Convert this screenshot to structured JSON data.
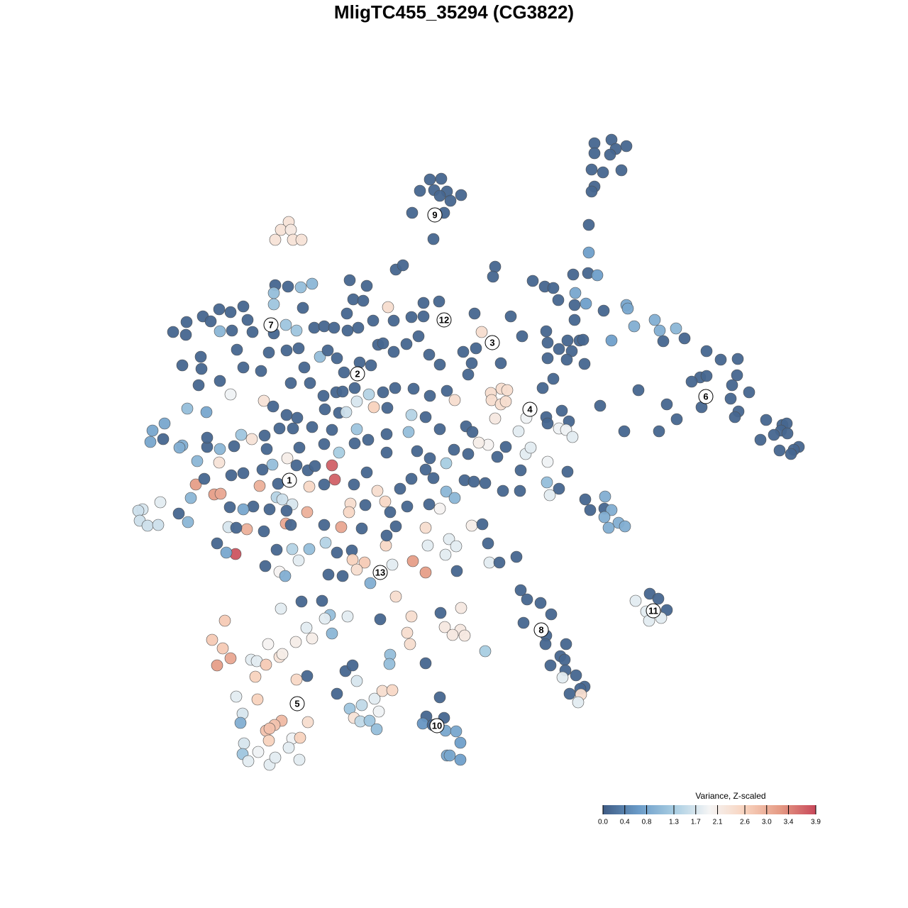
{
  "chart_data": {
    "type": "scatter",
    "title": "MligTC455_35294 (CG3822)",
    "xlim": [
      0,
      1280
    ],
    "ylim": [
      1280,
      0
    ],
    "x": [
      838,
      862,
      868,
      883,
      838,
      860,
      834,
      850,
      876,
      838,
      834,
      830,
      830,
      606,
      622,
      592,
      612,
      630,
      620,
      650,
      635,
      581,
      626,
      611,
      407,
      396,
      410,
      388,
      413,
      425,
      388,
      406,
      424,
      440,
      386,
      386,
      427,
      309,
      325,
      343,
      286,
      297,
      263,
      349,
      244,
      262,
      310,
      327,
      356,
      403,
      418,
      386,
      443,
      334,
      379,
      404,
      421,
      283,
      257,
      284,
      310,
      343,
      368,
      280,
      325,
      264,
      291,
      215,
      232,
      212,
      230,
      257,
      253,
      457,
      471,
      490,
      505,
      526,
      555,
      580,
      597,
      619,
      597,
      489,
      498,
      512,
      493,
      517,
      547,
      558,
      568,
      451,
      462,
      475,
      485,
      507,
      523,
      533,
      540,
      555,
      573,
      590,
      605,
      620,
      653,
      671,
      660,
      665,
      706,
      410,
      429,
      437,
      456,
      474,
      483,
      500,
      520,
      540,
      557,
      583,
      606,
      630,
      641,
      372,
      385,
      404,
      419,
      458,
      478,
      488,
      503,
      527,
      546,
      580,
      600,
      576,
      545,
      519,
      503,
      468,
      440,
      413,
      394,
      373,
      355,
      330,
      310,
      292,
      340,
      292,
      376,
      422,
      457,
      478,
      500,
      545,
      588,
      606,
      640,
      660,
      688,
      713,
      741,
      748,
      772,
      800,
      734,
      701,
      675,
      657,
      666,
      620,
      405,
      384,
      370,
      343,
      326,
      309,
      278,
      276,
      302,
      311,
      269,
      288,
      366,
      392,
      418,
      434,
      468,
      472,
      444,
      457,
      436,
      499,
      517,
      532,
      564,
      580,
      600,
      611,
      629,
      629,
      641,
      655,
      668,
      684,
      709,
      733,
      771,
      788,
      775,
      390,
      398,
      412,
      357,
      343,
      324,
      380,
      404,
      433,
      494,
      492,
      515,
      543,
      550,
      574,
      605,
      620,
      252,
      265,
      226,
      201,
      195,
      197,
      208,
      223,
      322,
      348,
      333,
      372,
      403,
      410,
      457,
      481,
      510,
      558,
      600,
      665,
      680,
      306,
      332,
      319,
      390,
      412,
      436,
      459,
      475,
      496,
      544,
      545,
      603,
      633,
      643,
      628,
      688,
      690,
      704,
      728,
      374,
      394,
      402,
      421,
      463,
      483,
      497,
      514,
      503,
      553,
      582,
      600,
      644,
      522,
      698,
      695,
      751,
      768,
      780,
      808,
      829,
      842,
      811,
      787,
      810,
      826,
      851,
      883,
      885,
      894,
      923,
      930,
      953,
      965,
      935,
      862,
      810,
      770,
      772,
      800,
      817,
      822,
      806,
      788,
      772,
      799,
      824,
      780,
      765,
      736,
      720,
      669,
      679,
      692,
      707,
      715,
      693,
      706,
      713,
      698,
      731,
      742,
      770,
      772,
      792,
      802,
      788,
      798,
      807,
      846,
      880,
      929,
      900,
      940,
      954,
      996,
      1016,
      1040,
      987,
      975,
      996,
      1039,
      1032,
      1030,
      1056,
      989,
      1041,
      1036,
      1080,
      1103,
      1109,
      1101,
      1110,
      1091,
      1072,
      1126,
      1119,
      1115,
      1099,
      734,
      743,
      762,
      777,
      738,
      770,
      769,
      798,
      790,
      796,
      776,
      797,
      793,
      812,
      824,
      818,
      803,
      819,
      815,
      825,
      832,
      853,
      852,
      862,
      852,
      872,
      858,
      881,
      896,
      916,
      928,
      940,
      911,
      932,
      915,
      425,
      454,
      396,
      465,
      458,
      490,
      536,
      558,
      580,
      621,
      650,
      627,
      649,
      655,
      638,
      684,
      317,
      432,
      468,
      574,
      417,
      440,
      578,
      299,
      314,
      378,
      325,
      306,
      354,
      362,
      375,
      394,
      398,
      550,
      549,
      600,
      487,
      497,
      433,
      418,
      360,
      475,
      503,
      528,
      539,
      553,
      510,
      493,
      534,
      333,
      363,
      342,
      339,
      434,
      397,
      387,
      375,
      380,
      412,
      423,
      407,
      379,
      344,
      364,
      342,
      350,
      380,
      388,
      422,
      499,
      508,
      521,
      531,
      620,
      601,
      596,
      626,
      610,
      628,
      643,
      649,
      630,
      634,
      649
    ],
    "y": [
      202,
      197,
      210,
      206,
      216,
      218,
      239,
      243,
      240,
      263,
      270,
      317,
      356,
      253,
      252,
      269,
      268,
      270,
      276,
      275,
      283,
      300,
      300,
      337,
      313,
      324,
      324,
      338,
      338,
      338,
      402,
      404,
      405,
      400,
      413,
      429,
      434,
      436,
      440,
      432,
      446,
      453,
      454,
      451,
      468,
      472,
      467,
      466,
      468,
      458,
      466,
      470,
      462,
      493,
      497,
      494,
      491,
      503,
      515,
      520,
      537,
      518,
      523,
      543,
      556,
      576,
      581,
      607,
      597,
      623,
      619,
      628,
      631,
      460,
      462,
      466,
      462,
      452,
      452,
      447,
      446,
      425,
      427,
      442,
      422,
      424,
      395,
      403,
      433,
      380,
      374,
      503,
      494,
      505,
      525,
      511,
      515,
      486,
      484,
      496,
      485,
      474,
      500,
      514,
      496,
      491,
      528,
      512,
      512,
      540,
      518,
      540,
      558,
      553,
      552,
      547,
      556,
      553,
      547,
      548,
      558,
      551,
      564,
      565,
      573,
      585,
      589,
      577,
      582,
      581,
      566,
      574,
      575,
      585,
      588,
      609,
      612,
      620,
      605,
      606,
      602,
      604,
      604,
      614,
      619,
      629,
      633,
      630,
      613,
      617,
      633,
      631,
      626,
      638,
      625,
      638,
      636,
      646,
      634,
      640,
      627,
      630,
      640,
      631,
      651,
      665,
      663,
      644,
      624,
      601,
      609,
      605,
      646,
      655,
      662,
      667,
      670,
      652,
      650,
      683,
      697,
      696,
      702,
      675,
      685,
      682,
      656,
      663,
      656,
      676,
      657,
      683,
      686,
      683,
      666,
      692,
      689,
      675,
      662,
      674,
      653,
      693,
      702,
      677,
      679,
      681,
      692,
      692,
      680,
      689,
      698,
      701,
      704,
      711,
      714,
      718,
      715,
      718,
      720,
      722,
      710,
      722,
      712,
      707,
      722,
      714,
      711,
      717,
      724,
      736,
      708,
      718,
      720,
      734,
      741,
      740,
      743,
      746,
      744,
      749,
      738,
      740,
      740,
      743,
      745,
      742,
      744,
      741,
      739,
      766,
      781,
      779,
      775,
      774,
      774,
      765,
      779,
      776,
      769,
      755,
      769,
      760,
      770,
      782,
      766,
      793,
      793,
      785,
      798,
      806,
      812,
      790,
      810,
      812,
      789,
      793,
      803,
      796,
      791,
      807,
      805,
      822,
      376,
      390,
      396,
      404,
      406,
      387,
      385,
      388,
      413,
      423,
      430,
      428,
      438,
      430,
      435,
      460,
      451,
      466,
      463,
      477,
      481,
      480,
      451,
      467,
      483,
      480,
      480,
      479,
      495,
      492,
      505,
      507,
      513,
      534,
      547,
      474,
      446,
      442,
      468,
      554,
      548,
      550,
      564,
      570,
      566,
      590,
      608,
      589,
      588,
      597,
      579,
      594,
      604,
      606,
      616,
      572,
      608,
      608,
      550,
      570,
      591,
      495,
      507,
      506,
      532,
      538,
      530,
      529,
      543,
      562,
      553,
      574,
      580,
      588,
      592,
      599,
      597,
      607,
      611,
      613,
      620,
      630,
      634,
      640,
      635,
      832,
      845,
      850,
      866,
      878,
      896,
      908,
      908,
      925,
      930,
      938,
      945,
      955,
      952,
      968,
      971,
      978,
      979,
      990,
      704,
      719,
      700,
      717,
      719,
      729,
      737,
      744,
      742,
      847,
      837,
      844,
      860,
      862,
      871,
      875,
      848,
      847,
      858,
      867,
      872,
      869,
      873,
      841,
      869,
      864,
      857,
      884,
      888,
      896,
      895,
      918,
      875,
      885,
      893,
      892,
      905,
      900,
      908,
      902,
      914,
      908,
      928,
      938,
      930,
      932,
      937,
      926,
      922,
      923,
      936,
      935,
      946,
      938,
      953,
      958,
      954,
      978,
      960,
      985,
      974,
      973,
      994,
      999,
      1003,
      982,
      986,
      1006,
      1019,
      1018,
      1016,
      1022,
      1030,
      1027,
      1041,
      1040,
      1054,
      1044,
      1048,
      1060,
      1063,
      1073,
      1078,
      1068,
      1071,
      1012,
      1017,
      1016,
      1028,
      983,
      1010,
      1020,
      1012,
      1022,
      1030,
      1031,
      1047,
      1065,
      1065,
      1071
    ],
    "values": [
      0.1,
      0.1,
      0.1,
      0.1,
      0.1,
      0.1,
      0.1,
      0.1,
      0.1,
      0.1,
      0.1,
      0.1,
      0.7,
      0.1,
      0.1,
      0.1,
      0.1,
      0.1,
      0.1,
      0.1,
      0.1,
      0.1,
      0.1,
      0.1,
      2.3,
      2.3,
      2.2,
      2.3,
      2.3,
      2.3,
      0.1,
      0.1,
      1.1,
      1.0,
      1.1,
      1.2,
      0.1,
      0.1,
      0.1,
      0.1,
      0.1,
      0.1,
      0.1,
      0.1,
      0.1,
      0.1,
      1.0,
      0.1,
      0.1,
      1.2,
      1.2,
      0.1,
      0.1,
      0.1,
      0.1,
      0.1,
      0.1,
      0.1,
      0.1,
      0.1,
      0.1,
      0.1,
      0.1,
      0.1,
      1.9,
      1.1,
      0.8,
      0.8,
      0.8,
      0.8,
      0.1,
      0.9,
      0.9,
      0.1,
      0.1,
      0.1,
      0.1,
      0.1,
      0.1,
      0.1,
      0.1,
      0.1,
      0.1,
      0.1,
      0.1,
      0.1,
      0.1,
      0.1,
      2.4,
      0.1,
      0.1,
      1.1,
      0.1,
      0.1,
      0.1,
      0.1,
      0.1,
      0.1,
      0.1,
      0.1,
      0.1,
      0.1,
      0.1,
      0.1,
      0.1,
      0.1,
      0.1,
      0.1,
      0.1,
      0.1,
      0.1,
      0.1,
      0.1,
      0.1,
      0.1,
      0.1,
      1.4,
      0.1,
      0.1,
      0.1,
      0.1,
      0.1,
      2.4,
      2.3,
      0.1,
      0.1,
      0.1,
      0.1,
      0.1,
      1.6,
      1.7,
      2.6,
      0.1,
      1.4,
      0.1,
      1.1,
      0.1,
      0.1,
      1.2,
      0.1,
      0.1,
      0.1,
      0.1,
      0.1,
      2.3,
      0.1,
      1.0,
      0.1,
      1.2,
      0.1,
      0.1,
      0.1,
      0.1,
      1.3,
      0.1,
      0.1,
      0.1,
      0.1,
      0.1,
      0.1,
      2.0,
      0.1,
      1.8,
      1.8,
      1.9,
      0.1,
      0.1,
      0.1,
      2.1,
      0.1,
      0.1,
      0.1,
      2.1,
      1.1,
      0.1,
      0.1,
      0.1,
      2.3,
      1.0,
      3.2,
      3.2,
      3.1,
      1.0,
      0.1,
      3.0,
      0.1,
      0.1,
      0.1,
      3.7,
      3.7,
      0.1,
      0.1,
      2.5,
      0.1,
      0.1,
      2.4,
      0.1,
      0.1,
      0.1,
      0.1,
      1.3,
      1.0,
      1.0,
      0.1,
      0.1,
      0.1,
      0.1,
      0.1,
      1.1,
      0.1,
      1.8,
      1.4,
      1.6,
      1.7,
      0.1,
      0.8,
      0.1,
      0.1,
      0.1,
      3.0,
      2.4,
      2.5,
      0.1,
      2.5,
      0.1,
      0.1,
      0.1,
      2.0,
      0.1,
      1.0,
      1.8,
      1.7,
      1.6,
      1.6,
      1.6,
      1.6,
      1.7,
      3.0,
      0.1,
      0.1,
      3.1,
      0.1,
      0.1,
      3.1,
      0.1,
      0.1,
      2.4,
      2.1,
      0.1,
      0.1,
      3.8,
      0.8,
      0.1,
      1.4,
      1.1,
      1.4,
      0.1,
      0.1,
      2.5,
      0.1,
      1.8,
      1.8,
      1.8,
      1.8,
      0.1,
      1.8,
      0.1,
      0.1,
      0.1,
      2.0,
      0.9,
      1.8,
      0.1,
      0.1,
      2.6,
      2.7,
      2.4,
      1.8,
      3.2,
      3.2,
      0.1,
      0.9,
      0.1,
      0.1,
      0.1,
      0.1,
      0.1,
      0.1,
      0.1,
      0.7,
      0.8,
      0.1,
      0.1,
      0.7,
      0.1,
      0.8,
      0.8,
      0.9,
      0.9,
      0.9,
      1.0,
      0.1,
      0.1,
      0.7,
      0.1,
      0.1,
      0.1,
      0.1,
      0.1,
      0.1,
      0.1,
      0.1,
      0.1,
      0.1,
      0.1,
      0.1,
      0.1,
      0.1,
      0.1,
      0.1,
      2.4,
      2.4,
      2.4,
      2.4,
      2.4,
      2.4,
      2.4,
      2.2,
      1.8,
      1.9,
      0.1,
      0.1,
      0.1,
      0.1,
      1.9,
      1.9,
      1.8,
      0.1,
      0.1,
      0.1,
      0.1,
      0.1,
      0.1,
      0.1,
      0.1,
      0.1,
      0.1,
      0.1,
      0.1,
      0.1,
      0.1,
      0.1,
      0.1,
      0.1,
      0.1,
      0.1,
      0.1,
      0.1,
      0.1,
      0.1,
      0.1,
      0.1,
      0.1,
      0.1,
      0.1,
      0.1,
      0.1,
      0.1,
      0.1,
      0.1,
      0.1,
      0.1,
      0.1,
      0.1,
      0.1,
      0.1,
      0.1,
      0.1,
      0.1,
      1.8,
      0.1,
      0.1,
      0.1,
      0.1,
      2.4,
      1.8,
      0.1,
      0.1,
      0.9,
      0.1,
      0.9,
      0.9,
      0.9,
      0.9,
      0.9,
      1.8,
      0.1,
      0.1,
      0.1,
      1.8,
      1.8,
      1.8,
      0.1,
      0.1,
      1.8,
      1.1,
      1.8,
      1.8,
      0.1,
      2.4,
      2.4,
      0.1,
      2.2,
      2.2,
      2.2,
      2.2,
      2.2,
      1.3,
      2.7,
      1.8,
      1.0,
      2.4,
      2.1,
      2.1,
      2.4,
      2.7,
      2.7,
      2.0,
      3.1,
      3.2,
      1.8,
      1.8,
      2.7,
      2.3,
      2.1,
      1.1,
      1.1,
      0.1,
      0.1,
      0.1,
      0.1,
      2.5,
      2.6,
      0.1,
      1.7,
      1.8,
      2.4,
      2.5,
      1.5,
      1.2,
      1.9,
      1.8,
      2.6,
      1.7,
      0.9,
      2.4,
      2.9,
      2.8,
      2.8,
      2.8,
      1.9,
      2.6,
      1.8,
      2.6,
      1.7,
      1.9,
      1.2,
      1.8,
      1.8,
      1.8,
      1.8,
      2.3,
      1.5,
      1.2,
      1.1,
      0.1,
      0.1,
      0.6,
      0.1,
      0.1,
      0.8,
      0.8,
      0.7,
      0.8,
      0.8,
      0.7
    ],
    "annotations": [
      {
        "label": "1",
        "x": 408,
        "y": 677
      },
      {
        "label": "2",
        "x": 504,
        "y": 527
      },
      {
        "label": "3",
        "x": 694,
        "y": 483
      },
      {
        "label": "4",
        "x": 747,
        "y": 577
      },
      {
        "label": "5",
        "x": 419,
        "y": 992
      },
      {
        "label": "6",
        "x": 995,
        "y": 559
      },
      {
        "label": "7",
        "x": 382,
        "y": 458
      },
      {
        "label": "8",
        "x": 763,
        "y": 888
      },
      {
        "label": "9",
        "x": 613,
        "y": 303
      },
      {
        "label": "10",
        "x": 616,
        "y": 1023
      },
      {
        "label": "11",
        "x": 921,
        "y": 861
      },
      {
        "label": "12",
        "x": 626,
        "y": 451
      },
      {
        "label": "13",
        "x": 536,
        "y": 807
      }
    ],
    "colorbar": {
      "title": "Variance, Z-scaled",
      "lim": [
        0,
        3.9
      ],
      "ticks": [
        {
          "value": 0,
          "label": "0.0"
        },
        0.4,
        0.8,
        1.3,
        1.7,
        2.1,
        2.6,
        {
          "value": 3,
          "label": "3.0"
        },
        3.4,
        3.9
      ],
      "colorscale": [
        "#3f5c85",
        "#6a9bc8",
        "#a8cde2",
        "#f5f5f5",
        "#f8d3be",
        "#e59a84",
        "#c8485a"
      ]
    }
  }
}
